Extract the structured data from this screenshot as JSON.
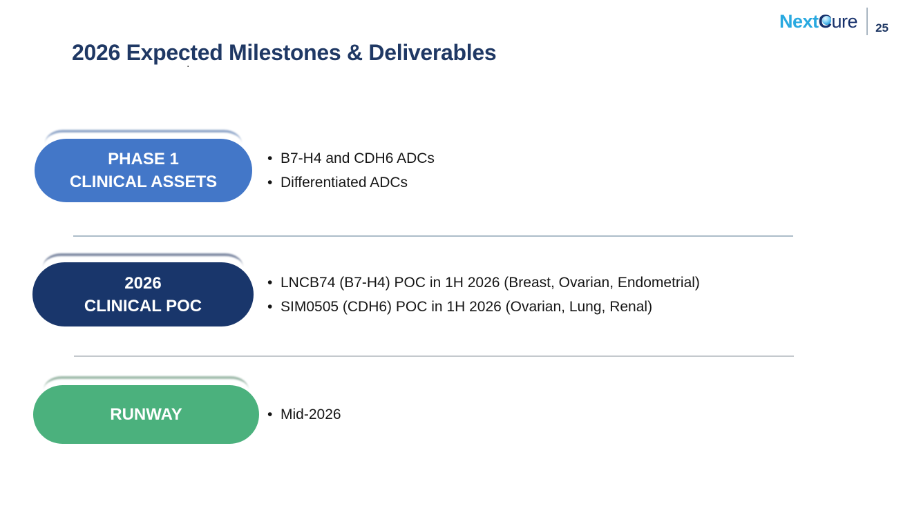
{
  "header": {
    "logo": {
      "next": "Next",
      "c": "C",
      "ure": "ure"
    },
    "page_number": "25"
  },
  "title": "2026 Expected Milestones & Deliverables",
  "stray_mark": ".",
  "rows": [
    {
      "pill_line1": "PHASE 1",
      "pill_line2": "CLINICAL ASSETS",
      "pill_color": "#4377C8",
      "bullets": [
        "B7-H4 and CDH6 ADCs",
        "Differentiated ADCs"
      ]
    },
    {
      "pill_line1": "2026",
      "pill_line2": "CLINICAL POC",
      "pill_color": "#19366B",
      "bullets": [
        "LNCB74 (B7-H4) POC in 1H 2026 (Breast, Ovarian, Endometrial)",
        "SIM0505 (CDH6) POC in 1H 2026 (Ovarian, Lung, Renal)"
      ]
    },
    {
      "pill_line1": "RUNWAY",
      "pill_line2": "",
      "pill_color": "#4BB17D",
      "bullets": [
        "Mid-2026"
      ]
    }
  ],
  "colors": {
    "title_navy": "#1F3864",
    "logo_cyan": "#29A9E0",
    "logo_navy": "#16306B",
    "page_number_navy": "#1F3864",
    "separator_gray": "#A9B6C2",
    "divider_top": "#ADBDC9",
    "divider_bottom": "#C4C9CD",
    "bullet_text": "#151515"
  }
}
